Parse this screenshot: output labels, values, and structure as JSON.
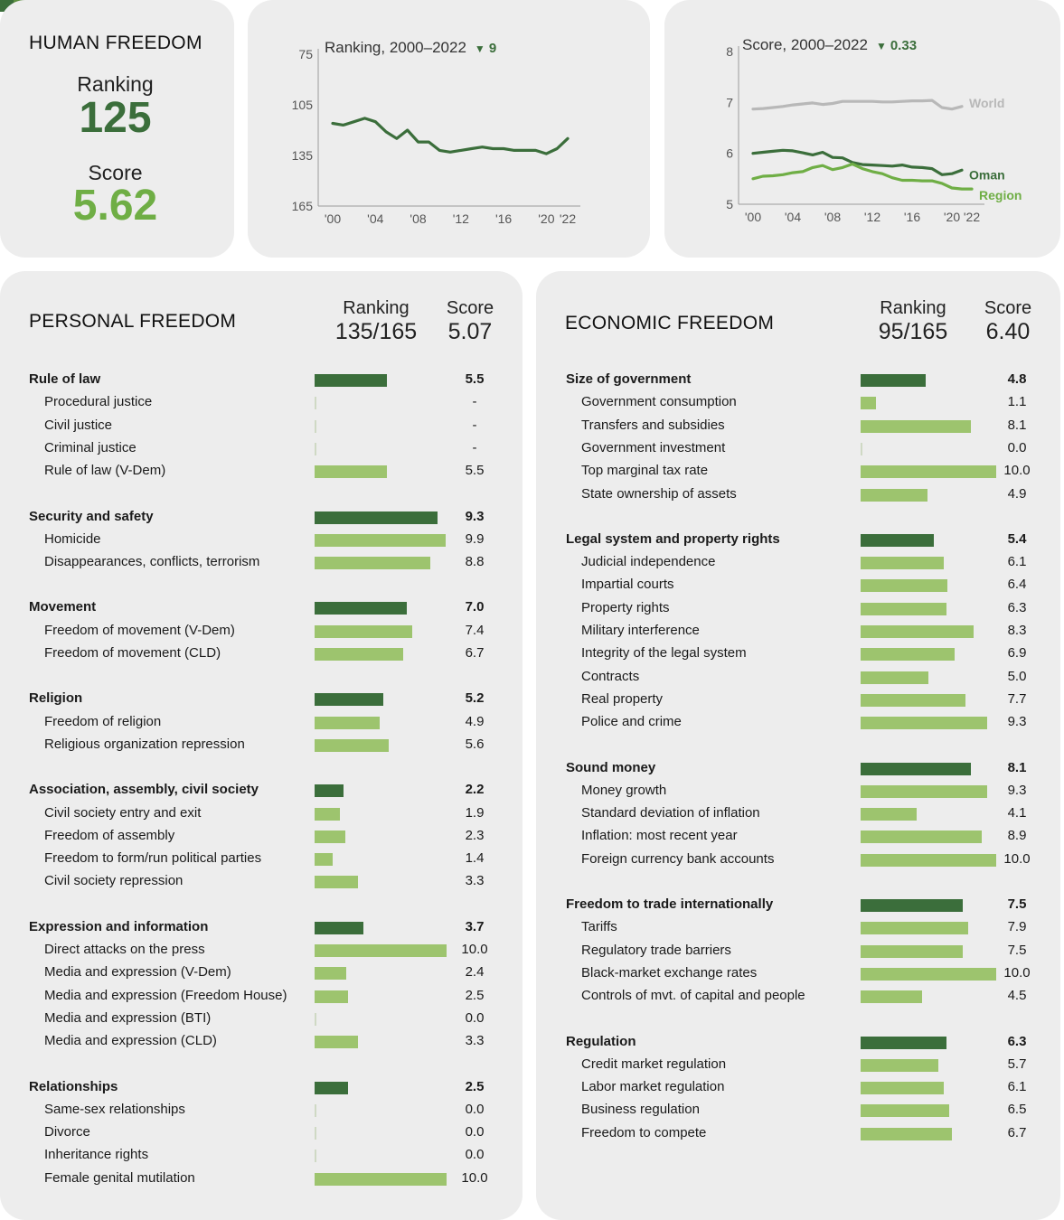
{
  "colors": {
    "dark_green": "#3b6e3b",
    "light_green": "#9dc46e",
    "score_green": "#6fae45",
    "region_green": "#6fae45",
    "world_gray": "#b8b8b8",
    "card_bg": "#ededed",
    "swatches": [
      "#3b6e3b",
      "#5c8f40",
      "#9dc46e",
      "#cfe3a3"
    ]
  },
  "human_freedom": {
    "title": "HUMAN FREEDOM",
    "ranking_label": "Ranking",
    "ranking": "125",
    "score_label": "Score",
    "score": "5.62"
  },
  "personal": {
    "title": "PERSONAL FREEDOM",
    "ranking_label": "Ranking",
    "ranking": "135/165",
    "score_label": "Score",
    "score": "5.07"
  },
  "economic": {
    "title": "ECONOMIC FREEDOM",
    "ranking_label": "Ranking",
    "ranking": "95/165",
    "score_label": "Score",
    "score": "6.40"
  },
  "chart_data": [
    {
      "type": "line",
      "title": "Ranking, 2000–2022",
      "change_marker": "▼",
      "change_value": "9",
      "x": [
        2000,
        2001,
        2002,
        2003,
        2004,
        2005,
        2006,
        2007,
        2008,
        2009,
        2010,
        2011,
        2012,
        2013,
        2014,
        2015,
        2016,
        2017,
        2018,
        2019,
        2020,
        2021,
        2022
      ],
      "x_ticks": [
        "'00",
        "'04",
        "'08",
        "'12",
        "'16",
        "'20",
        "'22"
      ],
      "x_tick_values": [
        2000,
        2004,
        2008,
        2012,
        2016,
        2020,
        2022
      ],
      "y_ticks": [
        75,
        105,
        135,
        165
      ],
      "ylim": [
        75,
        165
      ],
      "y_inverted": true,
      "series": [
        {
          "values": [
            116,
            117,
            115,
            113,
            115,
            121,
            125,
            120,
            127,
            127,
            132,
            133,
            132,
            131,
            130,
            131,
            131,
            132,
            132,
            132,
            134,
            131,
            125
          ]
        }
      ]
    },
    {
      "type": "line",
      "title": "Score, 2000–2022",
      "change_marker": "▼",
      "change_value": "0.33",
      "x": [
        2000,
        2001,
        2002,
        2003,
        2004,
        2005,
        2006,
        2007,
        2008,
        2009,
        2010,
        2011,
        2012,
        2013,
        2014,
        2015,
        2016,
        2017,
        2018,
        2019,
        2020,
        2021,
        2022
      ],
      "x_ticks": [
        "'00",
        "'04",
        "'08",
        "'12",
        "'16",
        "'20",
        "'22"
      ],
      "x_tick_values": [
        2000,
        2004,
        2008,
        2012,
        2016,
        2020,
        2022
      ],
      "y_ticks": [
        5,
        6,
        7,
        8
      ],
      "ylim": [
        5,
        8
      ],
      "series": [
        {
          "name": "World",
          "color": "#b8b8b8",
          "values": [
            6.87,
            6.88,
            6.9,
            6.92,
            6.95,
            6.97,
            6.99,
            6.96,
            6.98,
            7.02,
            7.02,
            7.02,
            7.02,
            7.01,
            7.01,
            7.02,
            7.03,
            7.03,
            7.04,
            6.9,
            6.87,
            6.92,
            null
          ]
        },
        {
          "name": "Oman",
          "color": "#3b6e3b",
          "values": [
            6.0,
            6.02,
            6.04,
            6.06,
            6.05,
            6.01,
            5.97,
            6.02,
            5.92,
            5.91,
            5.82,
            5.78,
            5.77,
            5.76,
            5.75,
            5.77,
            5.73,
            5.72,
            5.7,
            5.58,
            5.6,
            5.67,
            null
          ]
        },
        {
          "name": "Region",
          "color": "#6fae45",
          "values": [
            5.5,
            5.55,
            5.56,
            5.58,
            5.62,
            5.64,
            5.72,
            5.76,
            5.68,
            5.72,
            5.79,
            5.7,
            5.64,
            5.6,
            5.52,
            5.47,
            5.47,
            5.46,
            5.46,
            5.41,
            5.32,
            5.3,
            5.3
          ]
        }
      ]
    },
    {
      "type": "bar",
      "title": "PERSONAL FREEDOM",
      "xlim": [
        0,
        10
      ],
      "rows": [
        {
          "label": "Rule of law",
          "value": "5.5",
          "level": "cat"
        },
        {
          "label": "Procedural justice",
          "value": "-",
          "level": "sub"
        },
        {
          "label": "Civil justice",
          "value": "-",
          "level": "sub"
        },
        {
          "label": "Criminal justice",
          "value": "-",
          "level": "sub"
        },
        {
          "label": "Rule of law (V-Dem)",
          "value": "5.5",
          "level": "sub"
        },
        {
          "label": "Security and safety",
          "value": "9.3",
          "level": "cat"
        },
        {
          "label": "Homicide",
          "value": "9.9",
          "level": "sub"
        },
        {
          "label": "Disappearances, conflicts, terrorism",
          "value": "8.8",
          "level": "sub"
        },
        {
          "label": "Movement",
          "value": "7.0",
          "level": "cat"
        },
        {
          "label": "Freedom of movement (V-Dem)",
          "value": "7.4",
          "level": "sub"
        },
        {
          "label": "Freedom of movement (CLD)",
          "value": "6.7",
          "level": "sub"
        },
        {
          "label": "Religion",
          "value": "5.2",
          "level": "cat"
        },
        {
          "label": "Freedom of religion",
          "value": "4.9",
          "level": "sub"
        },
        {
          "label": "Religious organization repression",
          "value": "5.6",
          "level": "sub"
        },
        {
          "label": "Association, assembly, civil society",
          "value": "2.2",
          "level": "cat"
        },
        {
          "label": "Civil society entry and exit",
          "value": "1.9",
          "level": "sub"
        },
        {
          "label": "Freedom of assembly",
          "value": "2.3",
          "level": "sub"
        },
        {
          "label": "Freedom to form/run political parties",
          "value": "1.4",
          "level": "sub"
        },
        {
          "label": "Civil society repression",
          "value": "3.3",
          "level": "sub"
        },
        {
          "label": "Expression and information",
          "value": "3.7",
          "level": "cat"
        },
        {
          "label": "Direct attacks on the press",
          "value": "10.0",
          "level": "sub"
        },
        {
          "label": "Media and expression (V-Dem)",
          "value": "2.4",
          "level": "sub"
        },
        {
          "label": "Media and expression (Freedom House)",
          "value": "2.5",
          "level": "sub"
        },
        {
          "label": "Media and expression (BTI)",
          "value": "0.0",
          "level": "sub"
        },
        {
          "label": "Media and expression (CLD)",
          "value": "3.3",
          "level": "sub"
        },
        {
          "label": "Relationships",
          "value": "2.5",
          "level": "cat"
        },
        {
          "label": "Same-sex relationships",
          "value": "0.0",
          "level": "sub"
        },
        {
          "label": "Divorce",
          "value": "0.0",
          "level": "sub"
        },
        {
          "label": "Inheritance rights",
          "value": "0.0",
          "level": "sub"
        },
        {
          "label": "Female genital mutilation",
          "value": "10.0",
          "level": "sub"
        }
      ]
    },
    {
      "type": "bar",
      "title": "ECONOMIC FREEDOM",
      "xlim": [
        0,
        10
      ],
      "rows": [
        {
          "label": "Size of government",
          "value": "4.8",
          "level": "cat"
        },
        {
          "label": "Government consumption",
          "value": "1.1",
          "level": "sub"
        },
        {
          "label": "Transfers and subsidies",
          "value": "8.1",
          "level": "sub"
        },
        {
          "label": "Government investment",
          "value": "0.0",
          "level": "sub"
        },
        {
          "label": "Top marginal tax rate",
          "value": "10.0",
          "level": "sub"
        },
        {
          "label": "State ownership of assets",
          "value": "4.9",
          "level": "sub"
        },
        {
          "label": "Legal system and property rights",
          "value": "5.4",
          "level": "cat"
        },
        {
          "label": "Judicial independence",
          "value": "6.1",
          "level": "sub"
        },
        {
          "label": "Impartial courts",
          "value": "6.4",
          "level": "sub"
        },
        {
          "label": "Property rights",
          "value": "6.3",
          "level": "sub"
        },
        {
          "label": "Military interference",
          "value": "8.3",
          "level": "sub"
        },
        {
          "label": "Integrity of the legal system",
          "value": "6.9",
          "level": "sub"
        },
        {
          "label": "Contracts",
          "value": "5.0",
          "level": "sub"
        },
        {
          "label": "Real property",
          "value": "7.7",
          "level": "sub"
        },
        {
          "label": "Police and crime",
          "value": "9.3",
          "level": "sub"
        },
        {
          "label": "Sound money",
          "value": "8.1",
          "level": "cat"
        },
        {
          "label": "Money growth",
          "value": "9.3",
          "level": "sub"
        },
        {
          "label": "Standard deviation of inflation",
          "value": "4.1",
          "level": "sub"
        },
        {
          "label": "Inflation: most recent year",
          "value": "8.9",
          "level": "sub"
        },
        {
          "label": "Foreign currency bank accounts",
          "value": "10.0",
          "level": "sub"
        },
        {
          "label": "Freedom to trade internationally",
          "value": "7.5",
          "level": "cat"
        },
        {
          "label": "Tariffs",
          "value": "7.9",
          "level": "sub"
        },
        {
          "label": "Regulatory trade barriers",
          "value": "7.5",
          "level": "sub"
        },
        {
          "label": "Black-market exchange rates",
          "value": "10.0",
          "level": "sub"
        },
        {
          "label": "Controls of mvt. of capital and people",
          "value": "4.5",
          "level": "sub"
        },
        {
          "label": "Regulation",
          "value": "6.3",
          "level": "cat"
        },
        {
          "label": "Credit market regulation",
          "value": "5.7",
          "level": "sub"
        },
        {
          "label": "Labor market regulation",
          "value": "6.1",
          "level": "sub"
        },
        {
          "label": "Business regulation",
          "value": "6.5",
          "level": "sub"
        },
        {
          "label": "Freedom to compete",
          "value": "6.7",
          "level": "sub"
        }
      ]
    }
  ]
}
